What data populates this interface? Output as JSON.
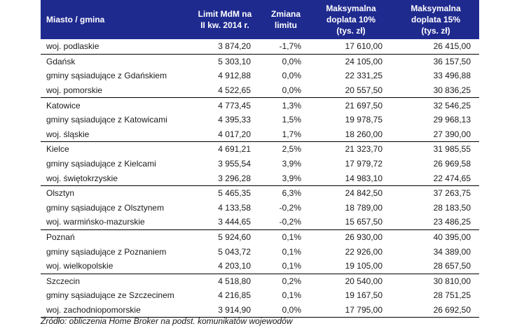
{
  "headers": {
    "city": "Miasto / gmina",
    "limit": [
      "Limit MdM na",
      "II kw. 2014 r."
    ],
    "change": [
      "Zmiana",
      "limitu"
    ],
    "max10": [
      "Maksymalna",
      "doplata 10%",
      "(tys. zł)"
    ],
    "max15": [
      "Maksymalna",
      "doplata 15%",
      "(tys. zł)"
    ]
  },
  "rows": [
    {
      "city": "woj. podlaskie",
      "limit": "3 874,20",
      "change": "-1,7%",
      "max10": "17 610,00",
      "max15": "26 415,00"
    },
    {
      "city": "Gdańsk",
      "limit": "5 303,10",
      "change": "0,0%",
      "max10": "24 105,00",
      "max15": "36 157,50"
    },
    {
      "city": "gminy sąsiadujące z Gdańskiem",
      "limit": "4 912,88",
      "change": "0,0%",
      "max10": "22 331,25",
      "max15": "33 496,88"
    },
    {
      "city": "woj. pomorskie",
      "limit": "4 522,65",
      "change": "0,0%",
      "max10": "20 557,50",
      "max15": "30 836,25"
    },
    {
      "city": "Katowice",
      "limit": "4 773,45",
      "change": "1,3%",
      "max10": "21 697,50",
      "max15": "32 546,25"
    },
    {
      "city": "gminy sąsiadujące z Katowicami",
      "limit": "4 395,33",
      "change": "1,5%",
      "max10": "19 978,75",
      "max15": "29 968,13"
    },
    {
      "city": "woj. śląskie",
      "limit": "4 017,20",
      "change": "1,7%",
      "max10": "18 260,00",
      "max15": "27 390,00"
    },
    {
      "city": "Kielce",
      "limit": "4 691,21",
      "change": "2,5%",
      "max10": "21 323,70",
      "max15": "31 985,55"
    },
    {
      "city": "gminy sąsiadujące z Kielcami",
      "limit": "3 955,54",
      "change": "3,9%",
      "max10": "17 979,72",
      "max15": "26 969,58"
    },
    {
      "city": "woj. świętokrzyskie",
      "limit": "3 296,28",
      "change": "3,9%",
      "max10": "14 983,10",
      "max15": "22 474,65"
    },
    {
      "city": "Olsztyn",
      "limit": "5 465,35",
      "change": "6,3%",
      "max10": "24 842,50",
      "max15": "37 263,75"
    },
    {
      "city": "gminy sąsiadujące z Olsztynem",
      "limit": "4 133,58",
      "change": "-0,2%",
      "max10": "18 789,00",
      "max15": "28 183,50"
    },
    {
      "city": "woj. warmińsko-mazurskie",
      "limit": "3 444,65",
      "change": "-0,2%",
      "max10": "15 657,50",
      "max15": "23 486,25"
    },
    {
      "city": "Poznań",
      "limit": "5 924,60",
      "change": "0,1%",
      "max10": "26 930,00",
      "max15": "40 395,00"
    },
    {
      "city": "gminy sąsiadujące z Poznaniem",
      "limit": "5 043,72",
      "change": "0,1%",
      "max10": "22 926,00",
      "max15": "34 389,00"
    },
    {
      "city": "woj. wielkopolskie",
      "limit": "4 203,10",
      "change": "0,1%",
      "max10": "19 105,00",
      "max15": "28 657,50"
    },
    {
      "city": "Szczecin",
      "limit": "4 518,80",
      "change": "0,2%",
      "max10": "20 540,00",
      "max15": "30 810,00"
    },
    {
      "city": "gminy sąsiadujące ze Szczecinem",
      "limit": "4 216,85",
      "change": "0,1%",
      "max10": "19 167,50",
      "max15": "28 751,25"
    },
    {
      "city": "woj. zachodniopomorskie",
      "limit": "3 914,90",
      "change": "0,0%",
      "max10": "17 795,00",
      "max15": "26 692,50"
    }
  ],
  "source": "Źródło: obliczenia Home Broker na podst. komunikatów wojewodów",
  "colors": {
    "header_bg": "#1f2a8f",
    "header_text": "#ffffff",
    "divider": "#000000"
  }
}
